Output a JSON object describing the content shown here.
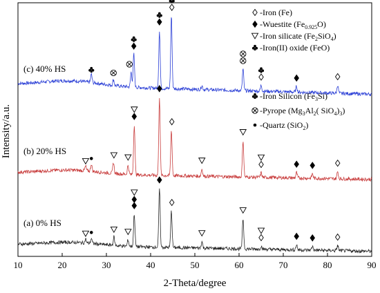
{
  "chart_data": {
    "type": "line",
    "xlabel": "2-Theta/degree",
    "ylabel": "Intensity/a.u.",
    "xlim": [
      10,
      90
    ],
    "x_ticks": [
      "10",
      "20",
      "30",
      "40",
      "50",
      "60",
      "70",
      "80",
      "90"
    ],
    "grid": false,
    "series": [
      {
        "name": "(c) 40% HS",
        "color": "#2b3fd6",
        "peaks": [
          {
            "x": 26.6,
            "h": 0.1
          },
          {
            "x": 31.6,
            "h": 0.07
          },
          {
            "x": 35.6,
            "h": 0.18
          },
          {
            "x": 36.2,
            "h": 0.4
          },
          {
            "x": 42.0,
            "h": 0.7
          },
          {
            "x": 44.7,
            "h": 0.88
          },
          {
            "x": 51.6,
            "h": 0.05
          },
          {
            "x": 60.9,
            "h": 0.26
          },
          {
            "x": 65.0,
            "h": 0.07
          },
          {
            "x": 73.0,
            "h": 0.07
          },
          {
            "x": 82.3,
            "h": 0.1
          }
        ],
        "markers": [
          {
            "x": 26.6,
            "symbol": "club"
          },
          {
            "x": 31.6,
            "symbol": "otimes"
          },
          {
            "x": 35.2,
            "symbol": "otimes"
          },
          {
            "x": 36.2,
            "symbol": "diamond-club"
          },
          {
            "x": 42.0,
            "symbol": "diamond-club"
          },
          {
            "x": 44.8,
            "symbol": "open-diamond-club"
          },
          {
            "x": 60.9,
            "symbol": "otimes-stack"
          },
          {
            "x": 65.0,
            "symbol": "open-diamond-club"
          },
          {
            "x": 73.0,
            "symbol": "diamond"
          },
          {
            "x": 82.3,
            "symbol": "open-diamond"
          }
        ]
      },
      {
        "name": "(b) 20% HS",
        "color": "#c83c3c",
        "peaks": [
          {
            "x": 25.3,
            "h": 0.05
          },
          {
            "x": 26.6,
            "h": 0.08
          },
          {
            "x": 31.6,
            "h": 0.12
          },
          {
            "x": 34.9,
            "h": 0.1
          },
          {
            "x": 36.3,
            "h": 0.55
          },
          {
            "x": 42.0,
            "h": 0.86
          },
          {
            "x": 44.7,
            "h": 0.5
          },
          {
            "x": 51.6,
            "h": 0.08
          },
          {
            "x": 60.9,
            "h": 0.4
          },
          {
            "x": 65.0,
            "h": 0.05
          },
          {
            "x": 73.0,
            "h": 0.06
          },
          {
            "x": 76.6,
            "h": 0.05
          },
          {
            "x": 82.3,
            "h": 0.08
          }
        ],
        "markers": [
          {
            "x": 25.3,
            "symbol": "triangle"
          },
          {
            "x": 26.6,
            "symbol": "dot"
          },
          {
            "x": 31.7,
            "symbol": "triangle"
          },
          {
            "x": 34.9,
            "symbol": "triangle"
          },
          {
            "x": 36.3,
            "symbol": "triangle-diamond"
          },
          {
            "x": 42.0,
            "symbol": "diamond"
          },
          {
            "x": 44.8,
            "symbol": "open-diamond"
          },
          {
            "x": 51.6,
            "symbol": "triangle"
          },
          {
            "x": 60.9,
            "symbol": "triangle"
          },
          {
            "x": 65.0,
            "symbol": "triangle-open-diamond"
          },
          {
            "x": 73.0,
            "symbol": "diamond"
          },
          {
            "x": 76.6,
            "symbol": "diamond"
          },
          {
            "x": 82.3,
            "symbol": "open-diamond"
          }
        ]
      },
      {
        "name": "(a) 0% HS",
        "color": "#262626",
        "peaks": [
          {
            "x": 25.3,
            "h": 0.06
          },
          {
            "x": 26.6,
            "h": 0.08
          },
          {
            "x": 31.7,
            "h": 0.13
          },
          {
            "x": 34.9,
            "h": 0.1
          },
          {
            "x": 36.3,
            "h": 0.5
          },
          {
            "x": 42.0,
            "h": 0.9
          },
          {
            "x": 44.7,
            "h": 0.56
          },
          {
            "x": 51.6,
            "h": 0.1
          },
          {
            "x": 60.9,
            "h": 0.46
          },
          {
            "x": 65.0,
            "h": 0.05
          },
          {
            "x": 73.0,
            "h": 0.08
          },
          {
            "x": 76.6,
            "h": 0.06
          },
          {
            "x": 82.3,
            "h": 0.08
          }
        ],
        "markers": [
          {
            "x": 25.3,
            "symbol": "triangle"
          },
          {
            "x": 26.6,
            "symbol": "dot"
          },
          {
            "x": 31.7,
            "symbol": "triangle"
          },
          {
            "x": 34.9,
            "symbol": "triangle"
          },
          {
            "x": 36.3,
            "symbol": "triangle-diamond-stack"
          },
          {
            "x": 42.0,
            "symbol": "diamond"
          },
          {
            "x": 44.8,
            "symbol": "open-diamond"
          },
          {
            "x": 51.6,
            "symbol": "triangle"
          },
          {
            "x": 60.9,
            "symbol": "triangle"
          },
          {
            "x": 65.0,
            "symbol": "triangle-open-diamond"
          },
          {
            "x": 73.0,
            "symbol": "diamond"
          },
          {
            "x": 76.6,
            "symbol": "diamond"
          },
          {
            "x": 82.3,
            "symbol": "open-diamond"
          }
        ]
      }
    ],
    "legend_upper": {
      "placement": "top-right",
      "entries": [
        {
          "symbol": "open-diamond",
          "label": "-Iron (Fe)"
        },
        {
          "symbol": "diamond",
          "label": "-Wuestite (Fe",
          "sub": "0.925",
          "tail": "O)"
        },
        {
          "symbol": "triangle",
          "label": "-Iron silicate (Fe",
          "sub": "2",
          "tail": "SiO",
          "sub2": "4",
          "tail2": ")"
        },
        {
          "symbol": "club",
          "label": "-Iron(II) oxide (FeO)"
        }
      ]
    },
    "legend_lower": {
      "placement": "right-middle",
      "entries": [
        {
          "symbol": "club",
          "label": "-Iron Silicon (Fe",
          "sub": "3",
          "tail": "Si)"
        },
        {
          "symbol": "otimes",
          "label": "-Pyrope (Mg",
          "sub": "3",
          "tail": "Al",
          "sub2": "2",
          "tail2": "( SiO",
          "sub3": "4",
          "tail3": ")",
          "sub4": "3",
          "tail4": ")"
        },
        {
          "symbol": "dot",
          "label": "-Quartz (SiO",
          "sub": "2",
          "tail": ")"
        }
      ]
    }
  }
}
